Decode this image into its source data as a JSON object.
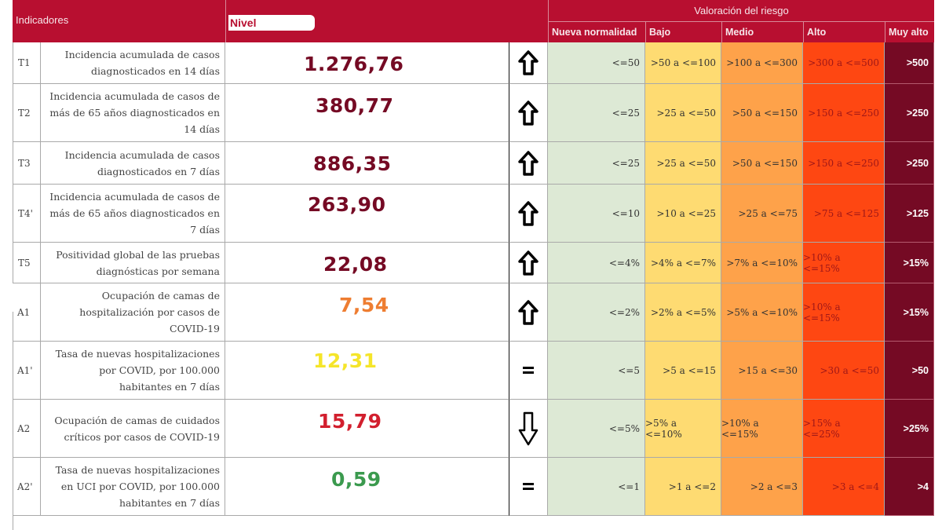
{
  "header": {
    "indicadores": "Indicadores",
    "nivel": "Nivel",
    "valoracion": "Valoración del riesgo",
    "levels": [
      "Nueva normalidad",
      "Bajo",
      "Medio",
      "Alto",
      "Muy alto"
    ]
  },
  "colors": {
    "header_bg": "#b80f30",
    "nueva_normalidad": "#dde9d5",
    "bajo": "#fedb72",
    "medio": "#fea24a",
    "alto": "#fe4712",
    "muy_alto": "#750a24"
  },
  "rows": [
    {
      "id": "T1",
      "desc": "Incidencia acumulada de casos diagnosticados en 14 días",
      "value": "1.276,76",
      "value_color": "#750a24",
      "trend": "up-icon",
      "trend_glyph": "⇧",
      "ranges": [
        "<=50",
        ">50 a <=100",
        ">100 a <=300",
        ">300 a <=500",
        ">500"
      ]
    },
    {
      "id": "T2",
      "desc": "Incidencia acumulada de casos de más de 65 años diagnosticados en 14 días",
      "value": "380,77",
      "value_color": "#750a24",
      "trend": "up-icon",
      "trend_glyph": "⇧",
      "ranges": [
        "<=25",
        ">25 a <=50",
        ">50 a <=150",
        ">150 a <=250",
        ">250"
      ]
    },
    {
      "id": "T3",
      "desc": "Incidencia acumulada de casos diagnosticados en 7 días",
      "value": "886,35",
      "value_color": "#750a24",
      "trend": "up-icon",
      "trend_glyph": "⇧",
      "ranges": [
        "<=25",
        ">25 a <=50",
        ">50 a <=150",
        ">150 a <=250",
        ">250"
      ]
    },
    {
      "id": "T4'",
      "desc": "Incidencia acumulada de casos de más de 65 años diagnosticados en 7 días",
      "value": "263,90",
      "value_color": "#750a24",
      "trend": "up-icon",
      "trend_glyph": "⇧",
      "ranges": [
        "<=10",
        ">10 a <=25",
        ">25 a <=75",
        ">75 a <=125",
        ">125"
      ]
    },
    {
      "id": "T5",
      "desc": "Positividad global de las pruebas diagnósticas por semana",
      "value": "22,08",
      "value_color": "#750a24",
      "trend": "up-icon",
      "trend_glyph": "⇧",
      "ranges": [
        "<=4%",
        ">4% a <=7%",
        ">7% a <=10%",
        ">10% a <=15%",
        ">15%"
      ]
    },
    {
      "id": "A1",
      "desc": "Ocupación de camas de hospitalización por casos de COVID-19",
      "value": "7,54",
      "value_color": "#ee7d31",
      "trend": "up-icon",
      "trend_glyph": "⇧",
      "ranges": [
        "<=2%",
        ">2% a <=5%",
        ">5% a <=10%",
        ">10% a <=15%",
        ">15%"
      ]
    },
    {
      "id": "A1'",
      "desc": "Tasa de nuevas hospitalizaciones por COVID, por 100.000 habitantes en 7 días",
      "value": "12,31",
      "value_color": "#f5e52a",
      "trend": "equal-icon",
      "trend_glyph": "=",
      "ranges": [
        "<=5",
        ">5 a <=15",
        ">15 a <=30",
        ">30 a <=50",
        ">50"
      ]
    },
    {
      "id": "A2",
      "desc": "Ocupación de camas de cuidados críticos por casos de COVID-19",
      "value": "15,79",
      "value_color": "#d21f2e",
      "trend": "down-icon",
      "trend_glyph": "⇩",
      "ranges": [
        "<=5%",
        ">5% a <=10%",
        ">10% a <=15%",
        ">15% a <=25%",
        ">25%"
      ]
    },
    {
      "id": "A2'",
      "desc": "Tasa de nuevas hospitalizaciones en UCI por COVID, por 100.000 habitantes en 7 días",
      "value": "0,59",
      "value_color": "#3b9a4e",
      "trend": "equal-icon",
      "trend_glyph": "=",
      "ranges": [
        "<=1",
        ">1 a <=2",
        ">2 a <=3",
        ">3 a <=4",
        ">4"
      ]
    }
  ]
}
